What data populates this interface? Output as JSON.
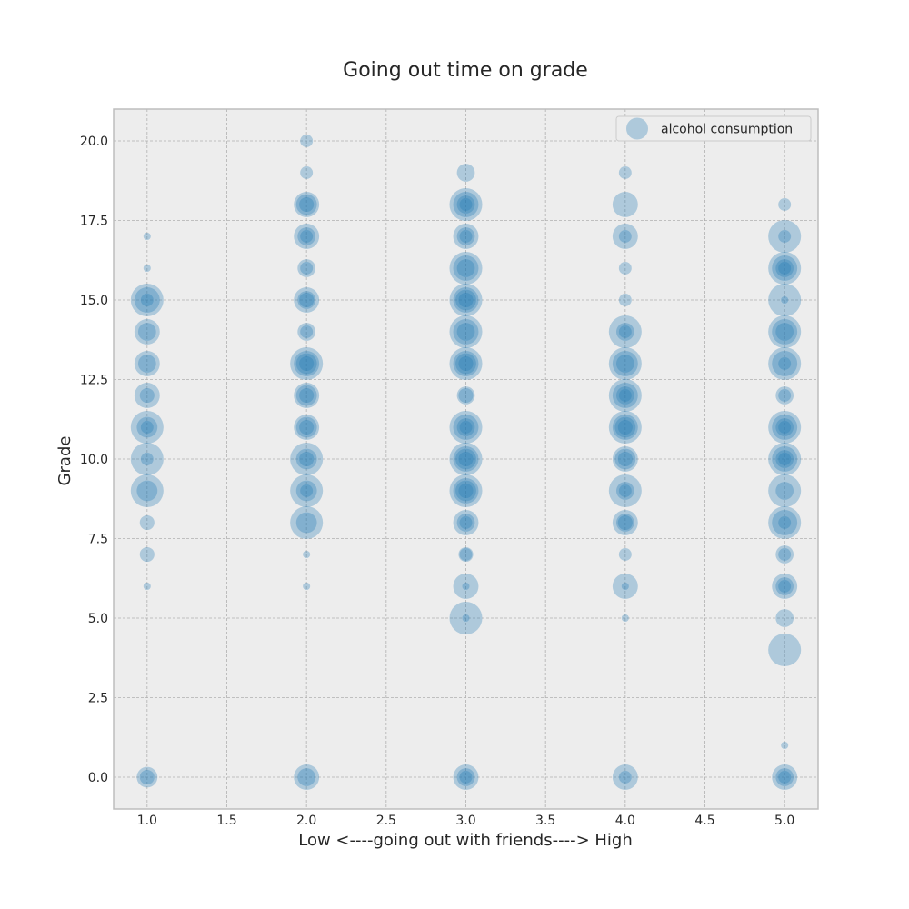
{
  "chart_data": {
    "type": "scatter",
    "title": "Going out time on grade",
    "xlabel": "Low <----going out with friends----> High",
    "ylabel": "Grade",
    "xlim": [
      0.79,
      5.21
    ],
    "ylim": [
      -1.0,
      21.0
    ],
    "xticks": [
      "1.0",
      "1.5",
      "2.0",
      "2.5",
      "3.0",
      "3.5",
      "4.0",
      "4.5",
      "5.0"
    ],
    "yticks": [
      "0.0",
      "2.5",
      "5.0",
      "7.5",
      "10.0",
      "12.5",
      "15.0",
      "17.5",
      "20.0"
    ],
    "grid": true,
    "legend": {
      "position": "top-right",
      "entries": [
        "alcohol consumption"
      ]
    },
    "colors": {
      "point": "#1f77b4",
      "plot_background": "#ededed",
      "grid": "#b0b0b0",
      "frame": "#bdbdbd"
    },
    "point_opacity": 0.3,
    "size_note": "marker area encodes alcohol consumption",
    "series": [
      {
        "name": "alcohol consumption",
        "points": [
          [
            1,
            0,
            4
          ],
          [
            1,
            0,
            2
          ],
          [
            1,
            6,
            0.5
          ],
          [
            1,
            7,
            2
          ],
          [
            1,
            8,
            2
          ],
          [
            1,
            9,
            10
          ],
          [
            1,
            9,
            4
          ],
          [
            1,
            10,
            10
          ],
          [
            1,
            10,
            1.5
          ],
          [
            1,
            11,
            10
          ],
          [
            1,
            11,
            4
          ],
          [
            1,
            11,
            1.5
          ],
          [
            1,
            12,
            6
          ],
          [
            1,
            12,
            2
          ],
          [
            1,
            13,
            6
          ],
          [
            1,
            13,
            3
          ],
          [
            1,
            14,
            6
          ],
          [
            1,
            14,
            3
          ],
          [
            1,
            15,
            10
          ],
          [
            1,
            15,
            6
          ],
          [
            1,
            15,
            1.5
          ],
          [
            1,
            16,
            0.5
          ],
          [
            1,
            17,
            0.5
          ],
          [
            2,
            0,
            6
          ],
          [
            2,
            0,
            3
          ],
          [
            2,
            6,
            0.5
          ],
          [
            2,
            7,
            0.5
          ],
          [
            2,
            8,
            10
          ],
          [
            2,
            8,
            4
          ],
          [
            2,
            9,
            10
          ],
          [
            2,
            9,
            4
          ],
          [
            2,
            9,
            1.5
          ],
          [
            2,
            10,
            10
          ],
          [
            2,
            10,
            4
          ],
          [
            2,
            10,
            2
          ],
          [
            2,
            11,
            6
          ],
          [
            2,
            11,
            4
          ],
          [
            2,
            11,
            2
          ],
          [
            2,
            12,
            6
          ],
          [
            2,
            12,
            4
          ],
          [
            2,
            12,
            2
          ],
          [
            2,
            13,
            10
          ],
          [
            2,
            13,
            6
          ],
          [
            2,
            13,
            4
          ],
          [
            2,
            13,
            2
          ],
          [
            2,
            14,
            3
          ],
          [
            2,
            14,
            1.5
          ],
          [
            2,
            15,
            6
          ],
          [
            2,
            15,
            3
          ],
          [
            2,
            15,
            2
          ],
          [
            2,
            16,
            3
          ],
          [
            2,
            16,
            1.5
          ],
          [
            2,
            17,
            6
          ],
          [
            2,
            17,
            3
          ],
          [
            2,
            17,
            1.5
          ],
          [
            2,
            18,
            6
          ],
          [
            2,
            18,
            4
          ],
          [
            2,
            18,
            2
          ],
          [
            2,
            19,
            1.5
          ],
          [
            2,
            20,
            1.5
          ],
          [
            3,
            0,
            6
          ],
          [
            3,
            0,
            3
          ],
          [
            3,
            0,
            1.5
          ],
          [
            3,
            5,
            10
          ],
          [
            3,
            5,
            0.5
          ],
          [
            3,
            6,
            6
          ],
          [
            3,
            6,
            0.5
          ],
          [
            3,
            7,
            2
          ],
          [
            3,
            7,
            1.5
          ],
          [
            3,
            8,
            6
          ],
          [
            3,
            8,
            3
          ],
          [
            3,
            8,
            1.5
          ],
          [
            3,
            9,
            10
          ],
          [
            3,
            9,
            6
          ],
          [
            3,
            9,
            4
          ],
          [
            3,
            9,
            2
          ],
          [
            3,
            10,
            10
          ],
          [
            3,
            10,
            6
          ],
          [
            3,
            10,
            4
          ],
          [
            3,
            10,
            2
          ],
          [
            3,
            11,
            10
          ],
          [
            3,
            11,
            6
          ],
          [
            3,
            11,
            3
          ],
          [
            3,
            11,
            1.5
          ],
          [
            3,
            12,
            3
          ],
          [
            3,
            12,
            2
          ],
          [
            3,
            13,
            10
          ],
          [
            3,
            13,
            6
          ],
          [
            3,
            13,
            4
          ],
          [
            3,
            13,
            2
          ],
          [
            3,
            14,
            10
          ],
          [
            3,
            14,
            6
          ],
          [
            3,
            14,
            3
          ],
          [
            3,
            15,
            10
          ],
          [
            3,
            15,
            6
          ],
          [
            3,
            15,
            4
          ],
          [
            3,
            15,
            2
          ],
          [
            3,
            16,
            10
          ],
          [
            3,
            16,
            6
          ],
          [
            3,
            16,
            3
          ],
          [
            3,
            17,
            6
          ],
          [
            3,
            17,
            3
          ],
          [
            3,
            17,
            1.5
          ],
          [
            3,
            18,
            10
          ],
          [
            3,
            18,
            6
          ],
          [
            3,
            18,
            3
          ],
          [
            3,
            18,
            1.5
          ],
          [
            3,
            19,
            3
          ],
          [
            4,
            0,
            6
          ],
          [
            4,
            0,
            1.5
          ],
          [
            4,
            5,
            0.5
          ],
          [
            4,
            6,
            6
          ],
          [
            4,
            6,
            0.5
          ],
          [
            4,
            7,
            1.5
          ],
          [
            4,
            8,
            6
          ],
          [
            4,
            8,
            3
          ],
          [
            4,
            8,
            2
          ],
          [
            4,
            9,
            10
          ],
          [
            4,
            9,
            3
          ],
          [
            4,
            9,
            1.5
          ],
          [
            4,
            10,
            6
          ],
          [
            4,
            10,
            4
          ],
          [
            4,
            10,
            2
          ],
          [
            4,
            11,
            10
          ],
          [
            4,
            11,
            6
          ],
          [
            4,
            11,
            4
          ],
          [
            4,
            11,
            2
          ],
          [
            4,
            12,
            10
          ],
          [
            4,
            12,
            6
          ],
          [
            4,
            12,
            3
          ],
          [
            4,
            12,
            1.5
          ],
          [
            4,
            13,
            10
          ],
          [
            4,
            13,
            6
          ],
          [
            4,
            13,
            3
          ],
          [
            4,
            14,
            10
          ],
          [
            4,
            14,
            3
          ],
          [
            4,
            14,
            1.5
          ],
          [
            4,
            15,
            1.5
          ],
          [
            4,
            16,
            1.5
          ],
          [
            4,
            17,
            6
          ],
          [
            4,
            17,
            1.5
          ],
          [
            4,
            18,
            6
          ],
          [
            4,
            19,
            1.5
          ],
          [
            5,
            0,
            6
          ],
          [
            5,
            0,
            3
          ],
          [
            5,
            0,
            1.5
          ],
          [
            5,
            1,
            0.5
          ],
          [
            5,
            4,
            10
          ],
          [
            5,
            5,
            3
          ],
          [
            5,
            6,
            6
          ],
          [
            5,
            6,
            3
          ],
          [
            5,
            6,
            1.5
          ],
          [
            5,
            7,
            3
          ],
          [
            5,
            7,
            1.5
          ],
          [
            5,
            8,
            10
          ],
          [
            5,
            8,
            6
          ],
          [
            5,
            8,
            1.5
          ],
          [
            5,
            9,
            10
          ],
          [
            5,
            9,
            3
          ],
          [
            5,
            10,
            10
          ],
          [
            5,
            10,
            6
          ],
          [
            5,
            10,
            3
          ],
          [
            5,
            10,
            1.5
          ],
          [
            5,
            11,
            10
          ],
          [
            5,
            11,
            6
          ],
          [
            5,
            11,
            3
          ],
          [
            5,
            11,
            1.5
          ],
          [
            5,
            12,
            3
          ],
          [
            5,
            12,
            1.5
          ],
          [
            5,
            13,
            10
          ],
          [
            5,
            13,
            6
          ],
          [
            5,
            13,
            1.5
          ],
          [
            5,
            14,
            10
          ],
          [
            5,
            14,
            6
          ],
          [
            5,
            14,
            3
          ],
          [
            5,
            15,
            10
          ],
          [
            5,
            15,
            0.5
          ],
          [
            5,
            16,
            10
          ],
          [
            5,
            16,
            6
          ],
          [
            5,
            16,
            3
          ],
          [
            5,
            16,
            1.5
          ],
          [
            5,
            17,
            10
          ],
          [
            5,
            17,
            1.5
          ],
          [
            5,
            18,
            1.5
          ]
        ]
      }
    ]
  }
}
